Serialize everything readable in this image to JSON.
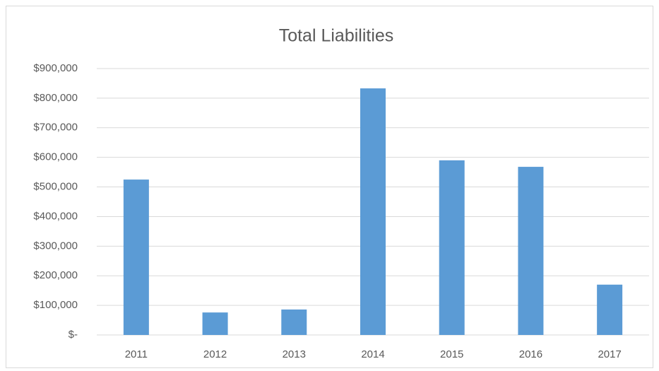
{
  "chart_data": {
    "type": "bar",
    "title": "Total Liabilities",
    "categories": [
      "2011",
      "2012",
      "2013",
      "2014",
      "2015",
      "2016",
      "2017"
    ],
    "values": [
      525000,
      76000,
      86000,
      833000,
      590000,
      568000,
      170000
    ],
    "color": "#5b9bd5",
    "ylim": [
      0,
      900000
    ],
    "yticks": [
      {
        "value": 0,
        "label": "$-"
      },
      {
        "value": 100000,
        "label": "$100,000"
      },
      {
        "value": 200000,
        "label": "$200,000"
      },
      {
        "value": 300000,
        "label": "$300,000"
      },
      {
        "value": 400000,
        "label": "$400,000"
      },
      {
        "value": 500000,
        "label": "$500,000"
      },
      {
        "value": 600000,
        "label": "$600,000"
      },
      {
        "value": 700000,
        "label": "$700,000"
      },
      {
        "value": 800000,
        "label": "$800,000"
      },
      {
        "value": 900000,
        "label": "$900,000"
      }
    ],
    "grid": true
  }
}
